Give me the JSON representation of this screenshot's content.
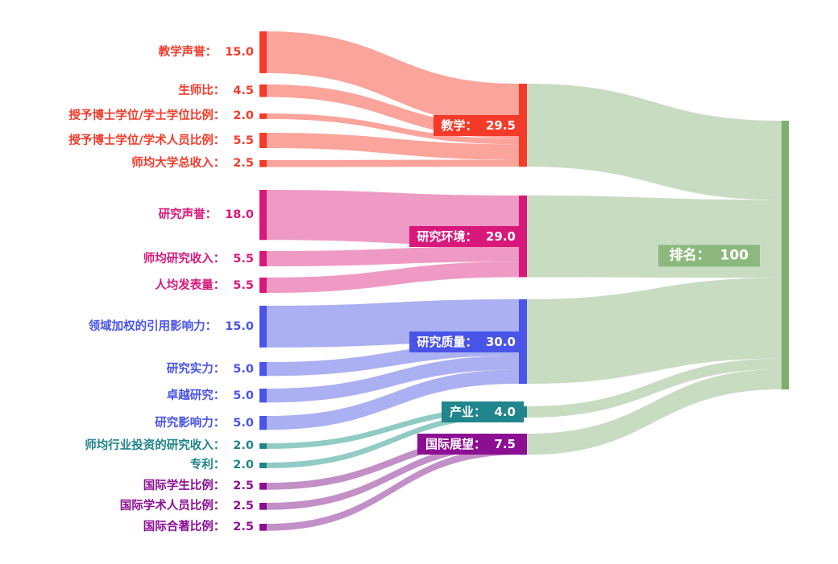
{
  "chart_data": {
    "type": "sankey",
    "title": "",
    "background_color": "#ffffff",
    "groups": {
      "teaching": {
        "name": "教学",
        "color": "#f43b2a",
        "flow_color": "#fba49c"
      },
      "research_environment": {
        "name": "研究环境",
        "color": "#d9187b",
        "flow_color": "#ef9ac5"
      },
      "research_quality": {
        "name": "研究质量",
        "color": "#4a54e8",
        "flow_color": "#aab0f1"
      },
      "industry": {
        "name": "产业",
        "color": "#20858c",
        "flow_color": "#90cbc4"
      },
      "international": {
        "name": "国际展望",
        "color": "#8c0f93",
        "flow_color": "#c28fc7"
      },
      "overall": {
        "name": "排名",
        "color": "#7fad6f",
        "flow_color": "#c8dcc2",
        "label_bg": "#8cb87e"
      }
    },
    "nodes": [
      {
        "id": "teaching_reputation",
        "label": "教学声誉",
        "value": 15.0,
        "text": "教学声誉：  15.0",
        "column": 0,
        "group": "teaching"
      },
      {
        "id": "student_staff_ratio",
        "label": "生师比",
        "value": 4.5,
        "text": "生师比：  4.5",
        "column": 0,
        "group": "teaching"
      },
      {
        "id": "doctorate_bachelor_ratio",
        "label": "授予博士学位/学士学位比例",
        "value": 2.0,
        "text": "授予博士学位/学士学位比例：  2.0",
        "column": 0,
        "group": "teaching"
      },
      {
        "id": "doctorate_staff_ratio",
        "label": "授予博士学位/学术人员比例",
        "value": 5.5,
        "text": "授予博士学位/学术人员比例：  5.5",
        "column": 0,
        "group": "teaching"
      },
      {
        "id": "institutional_income",
        "label": "师均大学总收入",
        "value": 2.5,
        "text": "师均大学总收入：  2.5",
        "column": 0,
        "group": "teaching"
      },
      {
        "id": "research_reputation",
        "label": "研究声誉",
        "value": 18.0,
        "text": "研究声誉：  18.0",
        "column": 0,
        "group": "research_environment"
      },
      {
        "id": "research_income",
        "label": "师均研究收入",
        "value": 5.5,
        "text": "师均研究收入：  5.5",
        "column": 0,
        "group": "research_environment"
      },
      {
        "id": "research_productivity",
        "label": "人均发表量",
        "value": 5.5,
        "text": "人均发表量：  5.5",
        "column": 0,
        "group": "research_environment"
      },
      {
        "id": "citation_impact",
        "label": "领域加权的引用影响力",
        "value": 15.0,
        "text": "领域加权的引用影响力：  15.0",
        "column": 0,
        "group": "research_quality"
      },
      {
        "id": "research_strength",
        "label": "研究实力",
        "value": 5.0,
        "text": "研究实力：  5.0",
        "column": 0,
        "group": "research_quality"
      },
      {
        "id": "research_excellence",
        "label": "卓越研究",
        "value": 5.0,
        "text": "卓越研究：  5.0",
        "column": 0,
        "group": "research_quality"
      },
      {
        "id": "research_influence",
        "label": "研究影响力",
        "value": 5.0,
        "text": "研究影响力：  5.0",
        "column": 0,
        "group": "research_quality"
      },
      {
        "id": "industry_income",
        "label": "师均行业投资的研究收入",
        "value": 2.0,
        "text": "师均行业投资的研究收入：  2.0",
        "column": 0,
        "group": "industry"
      },
      {
        "id": "patents",
        "label": "专利",
        "value": 2.0,
        "text": "专利：  2.0",
        "column": 0,
        "group": "industry"
      },
      {
        "id": "intl_students",
        "label": "国际学生比例",
        "value": 2.5,
        "text": "国际学生比例：  2.5",
        "column": 0,
        "group": "international"
      },
      {
        "id": "intl_staff",
        "label": "国际学术人员比例",
        "value": 2.5,
        "text": "国际学术人员比例：  2.5",
        "column": 0,
        "group": "international"
      },
      {
        "id": "intl_coauthorship",
        "label": "国际合著比例",
        "value": 2.5,
        "text": "国际合著比例：  2.5",
        "column": 0,
        "group": "international"
      },
      {
        "id": "teaching",
        "label": "教学",
        "value": 29.5,
        "text": "教学：  29.5",
        "column": 1,
        "group": "teaching"
      },
      {
        "id": "research_environment",
        "label": "研究环境",
        "value": 29.0,
        "text": "研究环境：  29.0",
        "column": 1,
        "group": "research_environment"
      },
      {
        "id": "research_quality",
        "label": "研究质量",
        "value": 30.0,
        "text": "研究质量：  30.0",
        "column": 1,
        "group": "research_quality"
      },
      {
        "id": "industry",
        "label": "产业",
        "value": 4.0,
        "text": "产业：  4.0",
        "column": 1,
        "group": "industry"
      },
      {
        "id": "international_outlook",
        "label": "国际展望",
        "value": 7.5,
        "text": "国际展望：  7.5",
        "column": 1,
        "group": "international"
      },
      {
        "id": "overall",
        "label": "排名",
        "value": 100,
        "text": "排名：  100",
        "column": 2,
        "group": "overall"
      }
    ],
    "links": [
      {
        "source": "teaching_reputation",
        "target": "teaching",
        "value": 15.0
      },
      {
        "source": "student_staff_ratio",
        "target": "teaching",
        "value": 4.5
      },
      {
        "source": "doctorate_bachelor_ratio",
        "target": "teaching",
        "value": 2.0
      },
      {
        "source": "doctorate_staff_ratio",
        "target": "teaching",
        "value": 5.5
      },
      {
        "source": "institutional_income",
        "target": "teaching",
        "value": 2.5
      },
      {
        "source": "research_reputation",
        "target": "research_environment",
        "value": 18.0
      },
      {
        "source": "research_income",
        "target": "research_environment",
        "value": 5.5
      },
      {
        "source": "research_productivity",
        "target": "research_environment",
        "value": 5.5
      },
      {
        "source": "citation_impact",
        "target": "research_quality",
        "value": 15.0
      },
      {
        "source": "research_strength",
        "target": "research_quality",
        "value": 5.0
      },
      {
        "source": "research_excellence",
        "target": "research_quality",
        "value": 5.0
      },
      {
        "source": "research_influence",
        "target": "research_quality",
        "value": 5.0
      },
      {
        "source": "industry_income",
        "target": "industry",
        "value": 2.0
      },
      {
        "source": "patents",
        "target": "industry",
        "value": 2.0
      },
      {
        "source": "intl_students",
        "target": "international_outlook",
        "value": 2.5
      },
      {
        "source": "intl_staff",
        "target": "international_outlook",
        "value": 2.5
      },
      {
        "source": "intl_coauthorship",
        "target": "international_outlook",
        "value": 2.5
      }
    ],
    "final_links": [
      {
        "source": "teaching",
        "target": "overall",
        "value": 29.5
      },
      {
        "source": "research_environment",
        "target": "overall",
        "value": 29.0
      },
      {
        "source": "research_quality",
        "target": "overall",
        "value": 30.0
      },
      {
        "source": "industry",
        "target": "overall",
        "value": 4.0
      },
      {
        "source": "international_outlook",
        "target": "overall",
        "value": 7.5
      }
    ]
  }
}
